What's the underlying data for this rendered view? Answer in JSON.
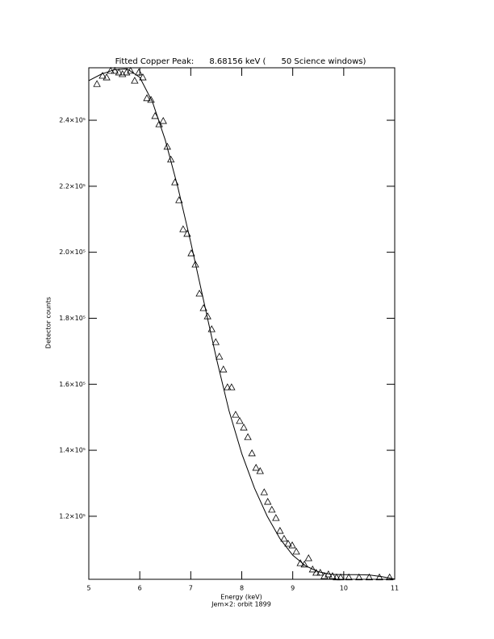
{
  "chart_data": {
    "type": "scatter",
    "title": "Fitted Copper Peak:      8.68156 keV (      50 Science windows)",
    "xlabel": "Energy (keV)",
    "ylabel": "Detector counts",
    "subtitle": "Jem×2: orbit 1899",
    "xlim": [
      5,
      11
    ],
    "xticks": [
      5,
      6,
      7,
      8,
      9,
      10,
      11
    ],
    "ylim": [
      100900,
      255900
    ],
    "yticks": [
      {
        "value": 120000,
        "label": "1.2×10⁵"
      },
      {
        "value": 140000,
        "label": "1.4×10⁵"
      },
      {
        "value": 160000,
        "label": "1.6×10⁵"
      },
      {
        "value": 180000,
        "label": "1.8×10⁵"
      },
      {
        "value": 200000,
        "label": "2.0×10⁵"
      },
      {
        "value": 220000,
        "label": "2.2×10⁵"
      },
      {
        "value": 240000,
        "label": "2.4×10⁵"
      }
    ],
    "color": "#000000",
    "series": [
      {
        "mode": "markers",
        "marker": "triangle",
        "x": [
          5.16,
          5.27,
          5.35,
          5.43,
          5.51,
          5.59,
          5.66,
          5.74,
          5.82,
          5.9,
          5.98,
          6.06,
          6.14,
          6.22,
          6.3,
          6.38,
          6.46,
          6.54,
          6.61,
          6.69,
          6.77,
          6.85,
          6.93,
          7.01,
          7.09,
          7.17,
          7.25,
          7.33,
          7.41,
          7.49,
          7.56,
          7.64,
          7.72,
          7.8,
          7.88,
          7.96,
          8.04,
          8.12,
          8.2,
          8.28,
          8.36,
          8.44,
          8.51,
          8.59,
          8.67,
          8.75,
          8.83,
          8.91,
          8.99,
          9.07,
          9.15,
          9.23,
          9.31,
          9.39,
          9.46,
          9.54,
          9.62,
          9.7,
          9.78,
          9.86,
          9.94,
          10.1,
          10.3,
          10.5,
          10.7,
          10.9
        ],
        "values": [
          251000,
          253500,
          253000,
          255000,
          255000,
          254500,
          254000,
          254500,
          255000,
          252000,
          254500,
          253000,
          246700,
          246200,
          241300,
          238800,
          239800,
          232000,
          228100,
          221200,
          215800,
          207000,
          205600,
          199700,
          196300,
          187500,
          183100,
          180600,
          176700,
          172800,
          168400,
          164500,
          159100,
          159100,
          150800,
          148900,
          146900,
          144000,
          139100,
          134700,
          133700,
          127300,
          124400,
          122000,
          119500,
          115600,
          113200,
          111700,
          111200,
          109300,
          105800,
          105400,
          107300,
          103900,
          102900,
          102900,
          101900,
          102400,
          101900,
          101500,
          101500,
          101500,
          101500,
          101500,
          101500,
          101500
        ]
      },
      {
        "mode": "line",
        "x": [
          5,
          5.25,
          5.5,
          5.75,
          6,
          6.25,
          6.5,
          6.75,
          7,
          7.25,
          7.5,
          7.75,
          8,
          8.25,
          8.5,
          8.75,
          9,
          9.25,
          9.5,
          9.75,
          10,
          10.25,
          10.5,
          10.75,
          11
        ],
        "values": [
          252000,
          254000,
          255300,
          255600,
          253000,
          245500,
          234000,
          219500,
          203000,
          185500,
          168000,
          152000,
          139000,
          128500,
          120000,
          113200,
          108200,
          105000,
          103200,
          102400,
          102300,
          102300,
          102200,
          101700,
          100950
        ]
      }
    ]
  }
}
